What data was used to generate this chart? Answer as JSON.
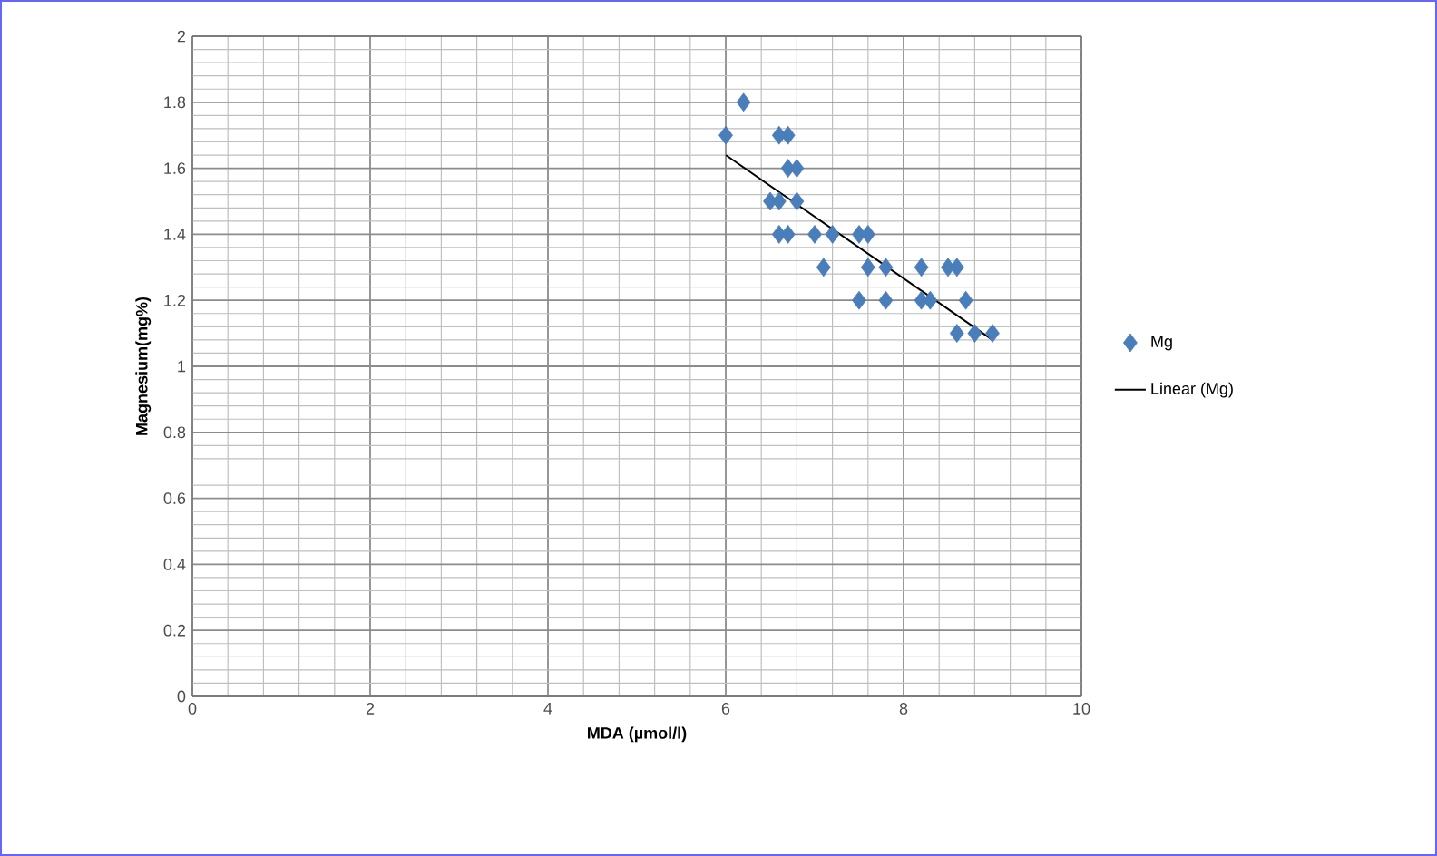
{
  "chart_data": {
    "type": "scatter",
    "xlabel": "MDA (µmol/l)",
    "ylabel": "Magnesium(mg%)",
    "xlim": [
      0,
      10
    ],
    "ylim": [
      0,
      2
    ],
    "xticks": [
      0,
      2,
      4,
      6,
      8,
      10
    ],
    "yticks": [
      0,
      0.2,
      0.4,
      0.6,
      0.8,
      1,
      1.2,
      1.4,
      1.6,
      1.8,
      2
    ],
    "grid": true,
    "legend": "right",
    "marker": "diamond",
    "series": [
      {
        "name": "Mg",
        "color": "#4a7ebb",
        "x": [
          6.0,
          6.2,
          6.6,
          6.7,
          6.7,
          6.8,
          6.5,
          6.6,
          6.8,
          6.6,
          6.7,
          7.0,
          7.2,
          7.1,
          7.5,
          7.6,
          7.6,
          7.8,
          7.5,
          7.8,
          8.2,
          8.5,
          8.6,
          8.2,
          8.3,
          8.7,
          8.6,
          8.8,
          9.0
        ],
        "values": [
          1.7,
          1.8,
          1.7,
          1.7,
          1.6,
          1.6,
          1.5,
          1.5,
          1.5,
          1.4,
          1.4,
          1.4,
          1.4,
          1.3,
          1.4,
          1.4,
          1.3,
          1.3,
          1.2,
          1.2,
          1.3,
          1.3,
          1.3,
          1.2,
          1.2,
          1.2,
          1.1,
          1.1,
          1.1
        ]
      },
      {
        "name": "Linear (Mg)",
        "type": "line",
        "marker": "none",
        "color": "#000000",
        "x": [
          6.0,
          9.0
        ],
        "values": [
          1.64,
          1.08
        ]
      }
    ]
  }
}
